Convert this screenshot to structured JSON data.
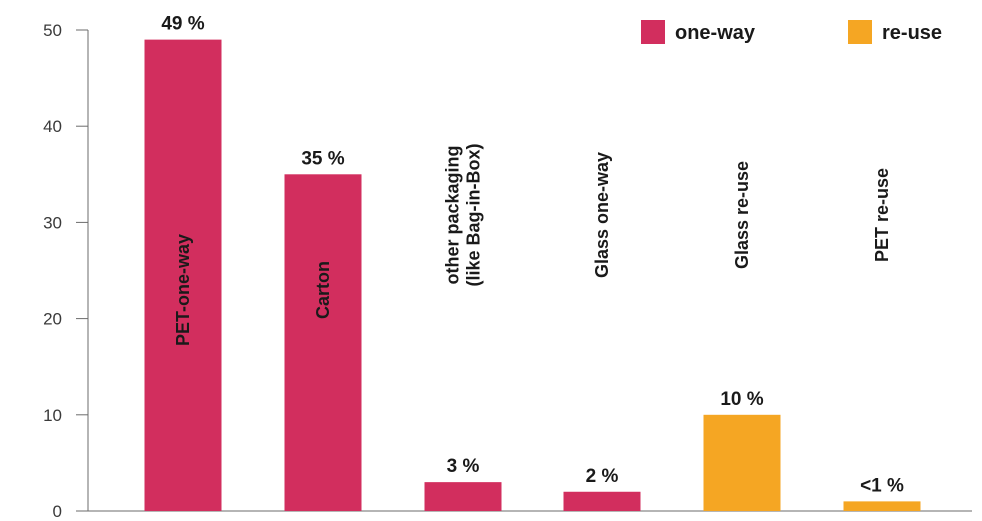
{
  "chart_data": {
    "type": "bar",
    "title": "",
    "xlabel": "",
    "ylabel": "",
    "ylim": [
      0,
      50
    ],
    "yticks": [
      0,
      10,
      20,
      30,
      40,
      50
    ],
    "grid": false,
    "legend_position": "top-right",
    "legend": [
      {
        "name": "one-way",
        "color": "#d22e5e"
      },
      {
        "name": "re-use",
        "color": "#f5a623"
      }
    ],
    "bars": [
      {
        "category_lines": [
          "PET-one-way"
        ],
        "value": 49,
        "label": "49 %",
        "series": "one-way"
      },
      {
        "category_lines": [
          "Carton"
        ],
        "value": 35,
        "label": "35 %",
        "series": "one-way"
      },
      {
        "category_lines": [
          "other packaging",
          "(like Bag-in-Box)"
        ],
        "value": 3,
        "label": "3 %",
        "series": "one-way"
      },
      {
        "category_lines": [
          "Glass one-way"
        ],
        "value": 2,
        "label": "2 %",
        "series": "one-way"
      },
      {
        "category_lines": [
          "Glass re-use"
        ],
        "value": 10,
        "label": "10 %",
        "series": "re-use"
      },
      {
        "category_lines": [
          "PET re-use"
        ],
        "value": 1,
        "label": "<1 %",
        "series": "re-use"
      }
    ]
  }
}
